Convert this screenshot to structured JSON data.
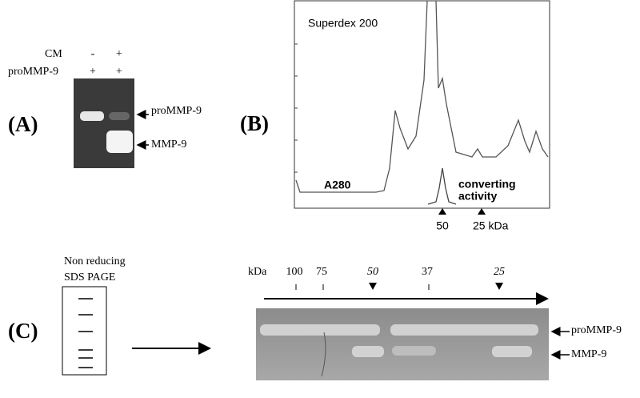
{
  "panel_a": {
    "label": "(A)",
    "row_labels": [
      "CM",
      "proMMP-9"
    ],
    "lanes": [
      [
        "-",
        "+"
      ],
      [
        "+",
        "+"
      ]
    ],
    "band_labels": [
      "proMMP-9",
      "MMP-9"
    ]
  },
  "panel_b": {
    "label": "(B)",
    "title": "Superdex 200",
    "trace_label": "A280",
    "activity_label": [
      "converting",
      "activity"
    ],
    "markers": [
      "50",
      "25 kDa"
    ]
  },
  "panel_c": {
    "label": "(C)",
    "gel_title": [
      "Non reducing",
      "SDS PAGE"
    ],
    "unit": "kDa",
    "markers": [
      "100",
      "75",
      "50",
      "37",
      "25"
    ],
    "band_labels": [
      "proMMP-9",
      "MMP-9"
    ]
  }
}
